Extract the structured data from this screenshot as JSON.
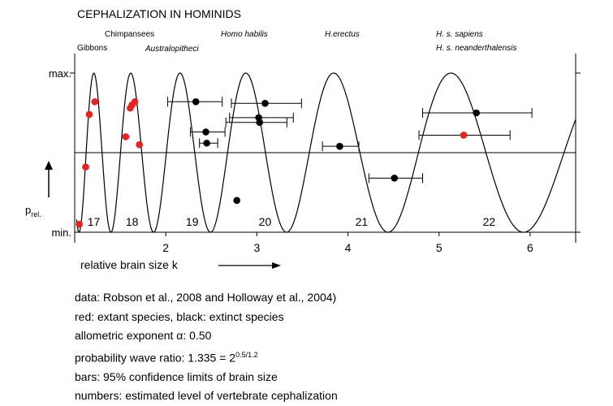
{
  "chart_data": {
    "type": "scatter",
    "title": "CEPHALIZATION IN HOMINIDS",
    "xlabel": "relative brain size k",
    "ylabel_main": "p",
    "ylabel_sub": "rel.",
    "y_ticks": [
      "min.",
      "max."
    ],
    "xlim": [
      1.0,
      6.5
    ],
    "ylim": [
      0,
      1
    ],
    "x_ticks": [
      2,
      3,
      4,
      5,
      6
    ],
    "midline_y": 0.5,
    "wave": {
      "ratio": 1.335,
      "start_peak": 1.21,
      "levels_start": 17,
      "description": "probability wave"
    },
    "species_labels": [
      {
        "text": "Gibbons",
        "italic": false
      },
      {
        "text": "Chimpansees",
        "italic": false
      },
      {
        "text": "Australopitheci",
        "italic": true
      },
      {
        "text": "Homo habilis",
        "italic": true
      },
      {
        "text": "H.erectus",
        "italic": true
      },
      {
        "text": "H. s. sapiens",
        "italic": true
      },
      {
        "text": "H. s. neanderthalensis",
        "italic": true
      }
    ],
    "level_numbers": [
      {
        "label": "17",
        "x": 1.21
      },
      {
        "label": "18",
        "x": 1.63
      },
      {
        "label": "19",
        "x": 2.29
      },
      {
        "label": "20",
        "x": 3.09
      },
      {
        "label": "21",
        "x": 4.15
      },
      {
        "label": "22",
        "x": 5.55
      }
    ],
    "series": [
      {
        "name": "red",
        "color": "#e8221f",
        "points": [
          {
            "x": 1.05,
            "y": 0.05
          },
          {
            "x": 1.12,
            "y": 0.41
          },
          {
            "x": 1.16,
            "y": 0.74
          },
          {
            "x": 1.22,
            "y": 0.82
          },
          {
            "x": 1.56,
            "y": 0.6
          },
          {
            "x": 1.61,
            "y": 0.78
          },
          {
            "x": 1.63,
            "y": 0.8
          },
          {
            "x": 1.66,
            "y": 0.82
          },
          {
            "x": 1.71,
            "y": 0.55
          },
          {
            "x": 5.27,
            "y": 0.61,
            "xerr": [
              4.78,
              5.78
            ]
          }
        ]
      },
      {
        "name": "black",
        "color": "#000000",
        "points": [
          {
            "x": 2.33,
            "y": 0.82,
            "xerr": [
              2.02,
              2.62
            ]
          },
          {
            "x": 2.44,
            "y": 0.63,
            "xerr": [
              2.27,
              2.65
            ]
          },
          {
            "x": 2.45,
            "y": 0.56,
            "xerr": [
              2.37,
              2.57
            ]
          },
          {
            "x": 2.78,
            "y": 0.2
          },
          {
            "x": 3.09,
            "y": 0.81,
            "xerr": [
              2.72,
              3.49
            ]
          },
          {
            "x": 3.02,
            "y": 0.72,
            "xerr": [
              2.7,
              3.4
            ]
          },
          {
            "x": 3.03,
            "y": 0.69,
            "xerr": [
              2.66,
              3.33
            ]
          },
          {
            "x": 3.91,
            "y": 0.54,
            "xerr": [
              3.72,
              4.12
            ]
          },
          {
            "x": 4.51,
            "y": 0.34,
            "xerr": [
              4.23,
              4.82
            ]
          },
          {
            "x": 5.41,
            "y": 0.75,
            "xerr": [
              4.82,
              6.02
            ]
          }
        ]
      }
    ]
  },
  "notes": {
    "line1": "data: Robson et al., 2008 and Holloway et al., 2004)",
    "line2": "red: extant species, black: extinct species",
    "line3": "allometric exponent α: 0.50",
    "line4_text": "probability wave ratio: 1.335 = 2",
    "line4_sup": "0.5/1.2",
    "line5": "bars: 95% confidence limits of brain size",
    "line6": "numbers: estimated level of vertebrate cephalization"
  }
}
